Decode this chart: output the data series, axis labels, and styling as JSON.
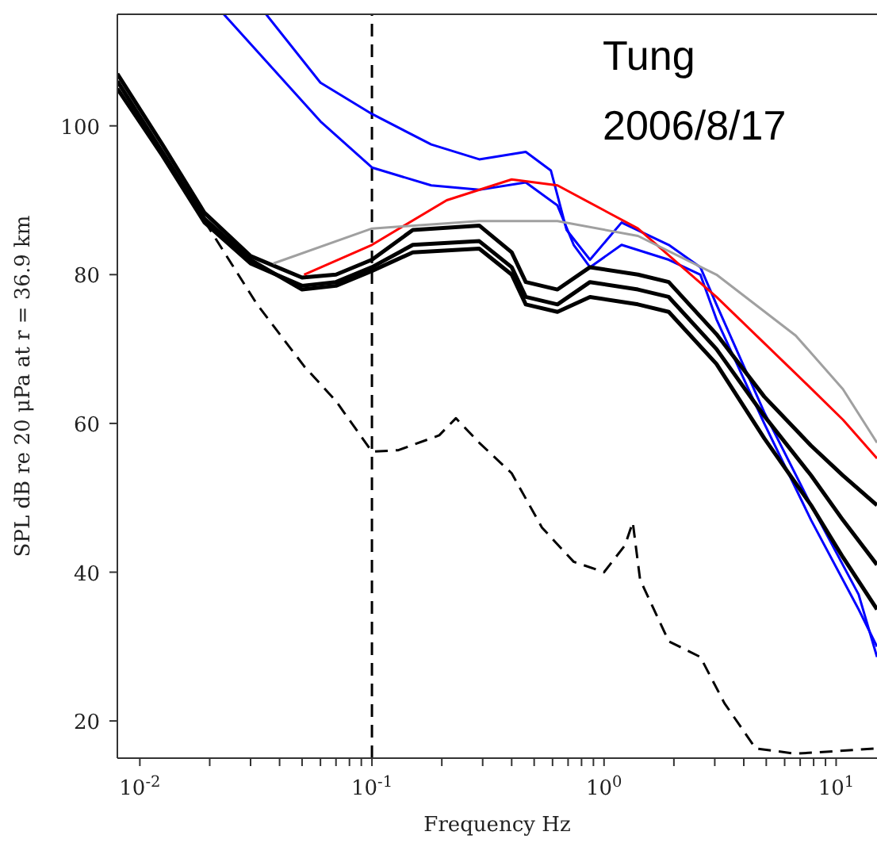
{
  "chart_data": {
    "type": "line",
    "xlabel": "Frequency Hz",
    "ylabel": "SPL dB re 20 μPa at r = 36.9 km",
    "log": "x",
    "grid": false,
    "legend": false,
    "marker": "none",
    "xlim": [
      0.008,
      15
    ],
    "ylim": [
      15,
      115
    ],
    "xticks": [
      {
        "value": 0.01,
        "label": "10$^{-2}$"
      },
      {
        "value": 0.02,
        "label": null
      },
      {
        "value": 0.03,
        "label": null
      },
      {
        "value": 0.04,
        "label": null
      },
      {
        "value": 0.05,
        "label": null
      },
      {
        "value": 0.06,
        "label": null
      },
      {
        "value": 0.07,
        "label": null
      },
      {
        "value": 0.08,
        "label": null
      },
      {
        "value": 0.09,
        "label": null
      },
      {
        "value": 0.1,
        "label": "10$^{-1}$"
      },
      {
        "value": 0.2,
        "label": null
      },
      {
        "value": 0.3,
        "label": null
      },
      {
        "value": 0.4,
        "label": null
      },
      {
        "value": 0.5,
        "label": null
      },
      {
        "value": 0.6,
        "label": null
      },
      {
        "value": 0.7,
        "label": null
      },
      {
        "value": 0.8,
        "label": null
      },
      {
        "value": 0.9,
        "label": null
      },
      {
        "value": 1,
        "label": "10$^{0}$"
      },
      {
        "value": 2,
        "label": null
      },
      {
        "value": 3,
        "label": null
      },
      {
        "value": 4,
        "label": null
      },
      {
        "value": 5,
        "label": null
      },
      {
        "value": 6,
        "label": null
      },
      {
        "value": 7,
        "label": null
      },
      {
        "value": 8,
        "label": null
      },
      {
        "value": 9,
        "label": null
      },
      {
        "value": 10,
        "label": "10$^{1}$"
      }
    ],
    "yticks": [
      20,
      40,
      60,
      80,
      100
    ],
    "annotations": [
      "Tung",
      "2006/8/17"
    ],
    "ref_lines": [
      {
        "axis": "x",
        "value": 0.1,
        "color": "#000000",
        "line_style": "dashed"
      }
    ],
    "series": [
      {
        "color": "#0000ff",
        "x": [
          0.035,
          0.06,
          0.1,
          0.18,
          0.29,
          0.46,
          0.59,
          0.69,
          0.87,
          1.19,
          1.9,
          2.6,
          3.05,
          4.9,
          7.8,
          12.5,
          15
        ],
        "values": [
          115,
          105.8,
          101.6,
          97.5,
          95.5,
          96.5,
          94,
          86,
          82,
          87,
          84,
          81,
          76,
          61.5,
          49,
          37,
          28.6
        ]
      },
      {
        "color": "#0000ff",
        "x": [
          0.023,
          0.06,
          0.1,
          0.18,
          0.29,
          0.46,
          0.63,
          0.74,
          0.87,
          1.19,
          1.9,
          2.6,
          3.05,
          4.9,
          7.8,
          12.5,
          15
        ],
        "values": [
          115,
          100.6,
          94.4,
          92,
          91.4,
          92.4,
          89.3,
          84,
          81,
          84,
          82,
          80,
          74,
          60,
          47,
          35,
          30
        ]
      },
      {
        "color": "#000000",
        "x": [
          0.008,
          0.0125,
          0.019,
          0.03,
          0.05,
          0.07,
          0.1,
          0.15,
          0.29,
          0.4,
          0.46,
          0.63,
          0.87,
          1.4,
          1.9,
          3.05,
          4.9,
          7.8,
          10.7,
          15
        ],
        "values": [
          107,
          97.5,
          88.3,
          82.5,
          79.6,
          80,
          82,
          86,
          86.6,
          83,
          79,
          78,
          81,
          80,
          79,
          72,
          63.6,
          57,
          53,
          49
        ]
      },
      {
        "color": "#000000",
        "x": [
          0.008,
          0.0125,
          0.019,
          0.03,
          0.05,
          0.07,
          0.1,
          0.15,
          0.29,
          0.4,
          0.46,
          0.63,
          0.87,
          1.4,
          1.9,
          3.05,
          4.9,
          7.8,
          10.7,
          15
        ],
        "values": [
          105,
          96,
          87,
          81.5,
          78.5,
          79,
          81,
          84,
          84.5,
          81,
          77,
          76,
          79,
          78,
          77,
          70,
          61,
          53,
          47,
          41
        ]
      },
      {
        "color": "#000000",
        "x": [
          0.008,
          0.0125,
          0.019,
          0.03,
          0.05,
          0.07,
          0.1,
          0.15,
          0.29,
          0.4,
          0.46,
          0.63,
          0.87,
          1.4,
          1.9,
          3.05,
          4.9,
          7.8,
          10.7,
          15
        ],
        "values": [
          106,
          96.5,
          87.5,
          82,
          78,
          78.5,
          80.5,
          83,
          83.5,
          80,
          76,
          75,
          77,
          76,
          75,
          68,
          58,
          49,
          42,
          35
        ]
      },
      {
        "color": "#ff0000",
        "x": [
          0.051,
          0.1,
          0.21,
          0.4,
          0.63,
          1.4,
          3.05,
          6.7,
          10.7,
          15
        ],
        "values": [
          80,
          84,
          90,
          92.8,
          92,
          86.2,
          77,
          66.7,
          60.5,
          55.3
        ]
      },
      {
        "color": "#a0a0a0",
        "x": [
          0.0376,
          0.1,
          0.29,
          0.63,
          1.4,
          3.05,
          6.7,
          10.7,
          15
        ],
        "values": [
          81.5,
          86.2,
          87.2,
          87.2,
          85.2,
          80,
          71.8,
          64.6,
          57.4
        ]
      },
      {
        "color": "#000000",
        "line_style": "dashed",
        "x": [
          0.019,
          0.032,
          0.051,
          0.07,
          0.1,
          0.13,
          0.195,
          0.23,
          0.29,
          0.4,
          0.54,
          0.74,
          1.0,
          1.23,
          1.33,
          1.43,
          1.9,
          2.6,
          3.3,
          4.5,
          6.7,
          15
        ],
        "values": [
          87.2,
          76,
          67.7,
          63,
          56.2,
          56.4,
          58.4,
          60.7,
          57.4,
          53.3,
          46,
          41.4,
          40,
          43.6,
          46.7,
          39,
          30.7,
          28.6,
          22.4,
          16.3,
          15.6,
          16.3
        ]
      }
    ]
  }
}
